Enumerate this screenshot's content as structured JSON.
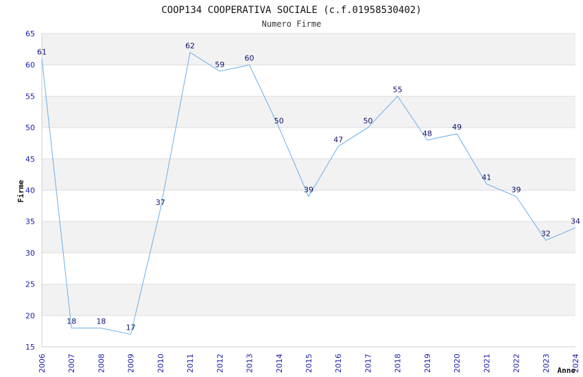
{
  "chart_data": {
    "type": "line",
    "title": "COOP134 COOPERATIVA SOCIALE (c.f.01958530402)",
    "subtitle": "Numero Firme",
    "xlabel": "Anno",
    "ylabel": "Firme",
    "x": [
      "2006",
      "2007",
      "2008",
      "2009",
      "2010",
      "2011",
      "2012",
      "2013",
      "2014",
      "2015",
      "2016",
      "2017",
      "2018",
      "2019",
      "2020",
      "2021",
      "2022",
      "2023",
      "2024"
    ],
    "series": [
      {
        "values": [
          61,
          18,
          18,
          17,
          37,
          62,
          59,
          60,
          50,
          39,
          47,
          50,
          55,
          48,
          49,
          41,
          39,
          32,
          34
        ]
      }
    ],
    "ylim": [
      15,
      65
    ],
    "yticks": [
      15,
      20,
      25,
      30,
      35,
      40,
      45,
      50,
      55,
      60,
      65
    ],
    "grid": true,
    "colors": {
      "line": "#6aaee8",
      "band": "#f2f2f2",
      "axis": "#cccccc",
      "tick": "#1a1aa6",
      "label": "#10106e"
    }
  }
}
